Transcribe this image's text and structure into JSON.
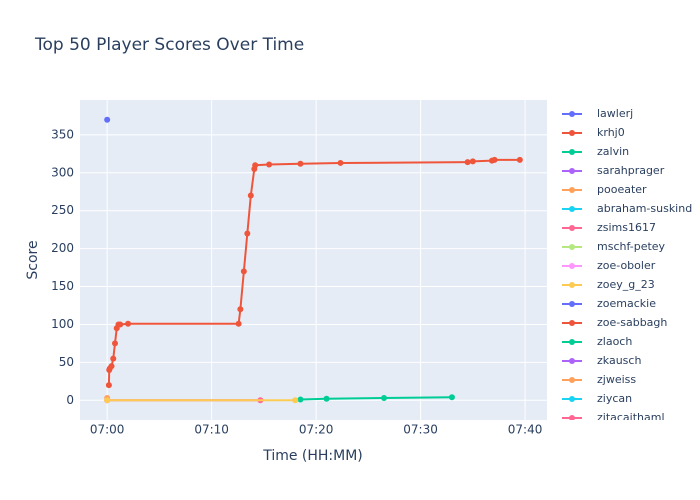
{
  "chart_data": {
    "type": "line",
    "title": "Top 50 Player Scores Over Time",
    "x_label": "Time (HH:MM)",
    "y_label": "Score",
    "xlim": [
      "06:57:24",
      "07:42:06"
    ],
    "xticks": [
      "07:00",
      "07:10",
      "07:20",
      "07:30",
      "07:40"
    ],
    "ylim": [
      -26,
      396
    ],
    "yticks": [
      0,
      50,
      100,
      150,
      200,
      250,
      300,
      350
    ],
    "grid": true,
    "legend": "right",
    "series": [
      {
        "name": "lawlerj",
        "color": "#636efa",
        "x": [
          "07:00:00"
        ],
        "values": [
          370
        ]
      },
      {
        "name": "krhj0",
        "color": "#EF553B",
        "x": [
          "07:00:10",
          "07:00:12",
          "07:00:15",
          "07:00:25",
          "07:00:35",
          "07:00:45",
          "07:00:55",
          "07:01:05",
          "07:01:15",
          "07:02:00",
          "07:12:35",
          "07:12:45",
          "07:13:05",
          "07:13:25",
          "07:13:45",
          "07:14:05",
          "07:14:10",
          "07:15:30",
          "07:18:30",
          "07:22:20",
          "07:34:30",
          "07:35:00",
          "07:36:50",
          "07:37:05",
          "07:39:30"
        ],
        "values": [
          20,
          40,
          42,
          45,
          55,
          75,
          95,
          100,
          100,
          101,
          101,
          120,
          170,
          220,
          270,
          305,
          310,
          311,
          312,
          313,
          314,
          315,
          316,
          317,
          317
        ]
      },
      {
        "name": "zalvin",
        "color": "#00cc96",
        "x": [
          "07:18:30",
          "07:21:00",
          "07:26:30",
          "07:33:00"
        ],
        "values": [
          1,
          2,
          3,
          4
        ]
      },
      {
        "name": "sarahprager",
        "color": "#ab63fa",
        "x": [],
        "values": []
      },
      {
        "name": "pooeater",
        "color": "#FFA15A",
        "x": [
          "07:00:00"
        ],
        "values": [
          3
        ]
      },
      {
        "name": "abraham-suskind",
        "color": "#19d3f3",
        "x": [],
        "values": []
      },
      {
        "name": "zsims1617",
        "color": "#FF6692",
        "x": [
          "07:00:00",
          "07:14:40"
        ],
        "values": [
          0,
          0
        ]
      },
      {
        "name": "mschf-petey",
        "color": "#B6E880",
        "x": [],
        "values": []
      },
      {
        "name": "zoe-oboler",
        "color": "#FF97FF",
        "x": [],
        "values": []
      },
      {
        "name": "zoey_g_23",
        "color": "#FECB52",
        "x": [
          "07:00:00",
          "07:18:00"
        ],
        "values": [
          0,
          0
        ]
      },
      {
        "name": "zoemackie",
        "color": "#636efa",
        "x": [],
        "values": []
      },
      {
        "name": "zoe-sabbagh",
        "color": "#EF553B",
        "x": [],
        "values": []
      },
      {
        "name": "zlaoch",
        "color": "#00cc96",
        "x": [],
        "values": []
      },
      {
        "name": "zkausch",
        "color": "#ab63fa",
        "x": [],
        "values": []
      },
      {
        "name": "zjweiss",
        "color": "#FFA15A",
        "x": [],
        "values": []
      },
      {
        "name": "ziycan",
        "color": "#19d3f3",
        "x": [],
        "values": []
      },
      {
        "name": "zitacaithaml",
        "color": "#FF6692",
        "x": [],
        "values": []
      }
    ]
  }
}
